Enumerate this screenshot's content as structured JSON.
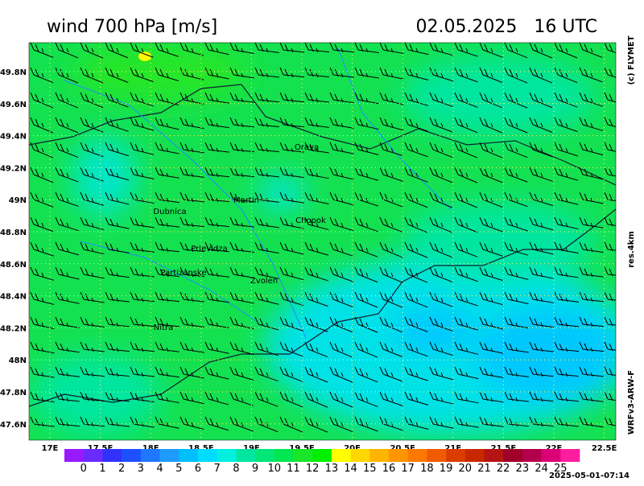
{
  "header": {
    "title": "wind 700 hPa [m/s]",
    "date": "02.05.2025   16 UTC"
  },
  "side_labels": {
    "copyright": "(c) FLYMET",
    "resolution": "res.4km",
    "model": "WRFv3-ARW-F"
  },
  "lat_ticks": [
    "49.8N",
    "49.6N",
    "49.4N",
    "49.2N",
    "49N",
    "48.8N",
    "48.6N",
    "48.4N",
    "48.2N",
    "48N",
    "47.8N",
    "47.6N"
  ],
  "lon_ticks": [
    "17E",
    "17.5E",
    "18E",
    "18.5E",
    "19E",
    "19.5E",
    "20E",
    "20.5E",
    "21E",
    "21.5E",
    "22E",
    "22.5E"
  ],
  "places": [
    "Orava",
    "Martin",
    "Dubnica",
    "Chopok",
    "Prievidza",
    "Partizanske",
    "Zvolen",
    "Nitra"
  ],
  "colorbar": {
    "labels": [
      "0",
      "1",
      "2",
      "3",
      "4",
      "5",
      "6",
      "7",
      "8",
      "9",
      "10",
      "11",
      "12",
      "13",
      "14",
      "15",
      "16",
      "17",
      "18",
      "19",
      "20",
      "21",
      "22",
      "23",
      "24",
      "25"
    ],
    "colors": [
      "#9a1aff",
      "#6a2bff",
      "#3232ff",
      "#1e50ff",
      "#1e78ff",
      "#1e9bff",
      "#00bfff",
      "#00dcff",
      "#00f0e0",
      "#00e6a0",
      "#00e678",
      "#00e650",
      "#19e628",
      "#00f000",
      "#ffff00",
      "#ffd700",
      "#ffb400",
      "#ff9600",
      "#ff7800",
      "#f05a00",
      "#dc3c00",
      "#c82800",
      "#b41414",
      "#a00028",
      "#b4004b",
      "#dc0078",
      "#ff1ea0"
    ]
  },
  "timestamp": "2025-05-01-07:14"
}
